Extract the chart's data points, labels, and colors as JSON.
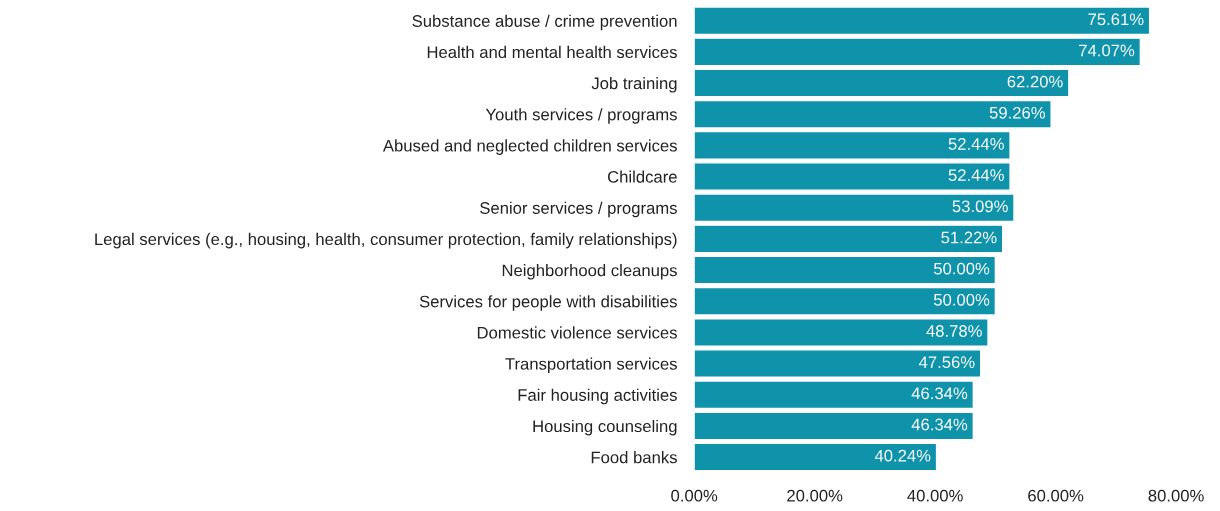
{
  "chart_data": {
    "type": "bar",
    "orientation": "horizontal",
    "categories": [
      "Substance abuse / crime prevention",
      "Health and mental health services",
      "Job training",
      "Youth services / programs",
      "Abused and neglected children services",
      "Childcare",
      "Senior services / programs",
      "Legal services (e.g., housing, health, consumer protection, family relationships)",
      "Neighborhood cleanups",
      "Services for people with disabilities",
      "Domestic violence services",
      "Transportation services",
      "Fair housing activities",
      "Housing counseling",
      "Food banks"
    ],
    "values": [
      75.61,
      74.07,
      62.2,
      59.26,
      52.44,
      52.44,
      53.09,
      51.22,
      50.0,
      50.0,
      48.78,
      47.56,
      46.34,
      46.34,
      40.24
    ],
    "value_labels": [
      "75.61%",
      "74.07%",
      "62.20%",
      "59.26%",
      "52.44%",
      "52.44%",
      "53.09%",
      "51.22%",
      "50.00%",
      "50.00%",
      "48.78%",
      "47.56%",
      "46.34%",
      "46.34%",
      "40.24%"
    ],
    "color": "#0f93ab",
    "xlim": [
      0,
      80
    ],
    "xticks": [
      {
        "value": 0,
        "label": "0.00%"
      },
      {
        "value": 20,
        "label": "20.00%"
      },
      {
        "value": 40,
        "label": "40.00%"
      },
      {
        "value": 60,
        "label": "60.00%"
      },
      {
        "value": 80,
        "label": "80.00%"
      }
    ],
    "grid": false,
    "legend": false
  }
}
